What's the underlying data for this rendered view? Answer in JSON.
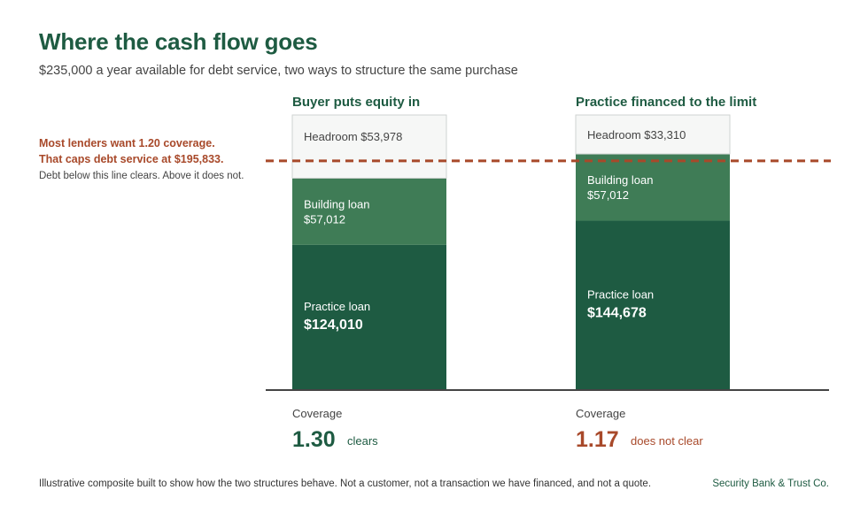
{
  "header": {
    "title": "Where the cash flow goes",
    "subtitle": "$235,000 a year available for debt service, two ways to structure the same purchase"
  },
  "threshold_note": {
    "line1": "Most lenders want 1.20 coverage.",
    "line2": "That caps debt service at $195,833.",
    "line3": "Debt below this line clears. Above it does not."
  },
  "colors": {
    "practice_loan": "#1e5b42",
    "building_loan": "#3f7c56",
    "headroom_fill": "#f6f7f6",
    "headroom_stroke": "#cfd3d1",
    "threshold": "#a8492a",
    "clears": "#1e5b42",
    "not_clear": "#a8492a",
    "baseline": "#444444"
  },
  "chart_data": {
    "type": "bar",
    "stacked": true,
    "total": 235000,
    "threshold_value": 195833,
    "ylim": [
      0,
      235000
    ],
    "grid": false,
    "coverage_label": "Coverage",
    "bars": [
      {
        "title": "Buyer puts equity in",
        "segments": [
          {
            "name": "Practice loan",
            "value": 124010,
            "label": "$124,010"
          },
          {
            "name": "Building loan",
            "value": 57012,
            "label": "$57,012"
          },
          {
            "name": "Headroom",
            "value": 53978,
            "label": "$53,978"
          }
        ],
        "coverage": "1.30",
        "verdict": "clears",
        "passes": true
      },
      {
        "title": "Practice financed to the limit",
        "segments": [
          {
            "name": "Practice loan",
            "value": 144678,
            "label": "$144,678"
          },
          {
            "name": "Building loan",
            "value": 57012,
            "label": "$57,012"
          },
          {
            "name": "Headroom",
            "value": 33310,
            "label": "$33,310"
          }
        ],
        "coverage": "1.17",
        "verdict": "does not clear",
        "passes": false
      }
    ]
  },
  "footer": {
    "disclaimer": "Illustrative composite built to show how the two structures behave. Not a customer, not a transaction we have financed, and not a quote.",
    "bank": "Security Bank & Trust Co."
  }
}
